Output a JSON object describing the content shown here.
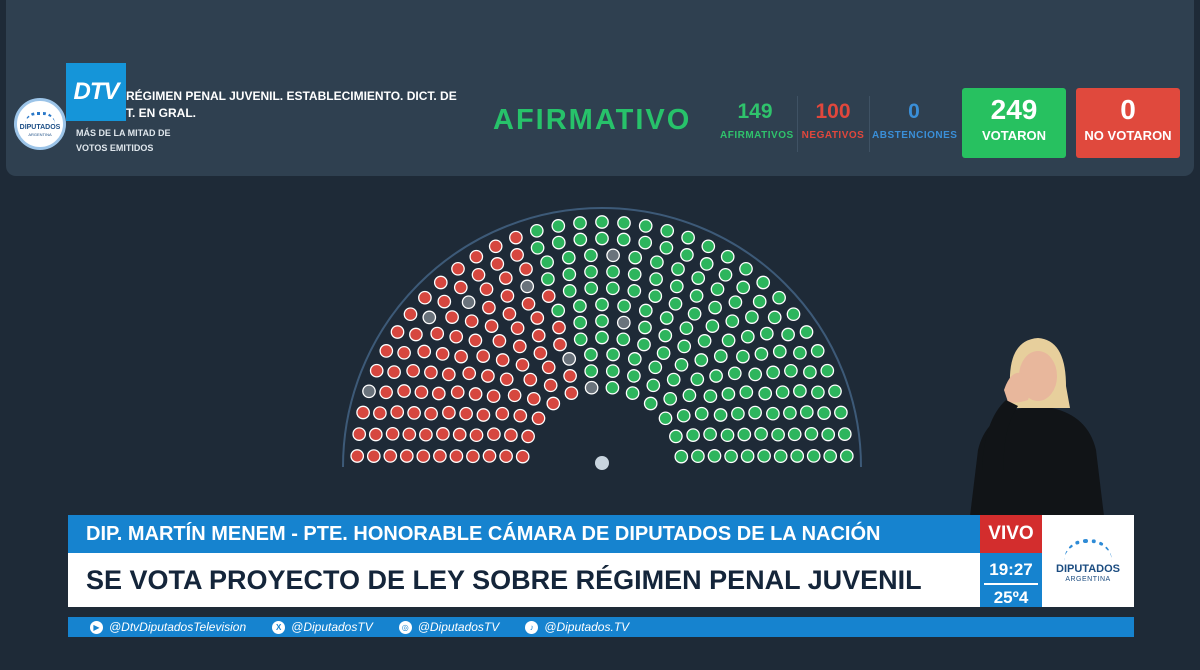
{
  "header": {
    "vote_title_line1": "RÉGIMEN PENAL JUVENIL. ESTABLECIMIENTO. DICT. DE",
    "vote_title_line2": "T. EN GRAL.",
    "vote_rule": "MÁS DE LA MITAD DE VOTOS EMITIDOS",
    "seal_text": "DIPUTADOS",
    "seal_sub": "ARGENTINA",
    "dtv_logo": "DTV"
  },
  "result": {
    "word": "AFIRMATIVO",
    "affirmative": {
      "value": "149",
      "label": "AFIRMATIVOS"
    },
    "negative": {
      "value": "100",
      "label": "NEGATIVOS"
    },
    "abstention": {
      "value": "0",
      "label": "ABSTENCIONES"
    },
    "voted": {
      "value": "249",
      "label": "VOTARON"
    },
    "not_voted": {
      "value": "0",
      "label": "NO VOTARON"
    }
  },
  "chamber": {
    "total_seats": 257,
    "negative_seats": 100,
    "absent_seats": 8,
    "affirmative_seats": 149,
    "colors": {
      "affirmative": "#2db55d",
      "negative": "#d6473f",
      "absent": "#6a737c",
      "president": "#c8d4de"
    }
  },
  "lower_third": {
    "speaker": "DIP. MARTÍN MENEM - PTE. HONORABLE CÁMARA DE DIPUTADOS DE LA NACIÓN",
    "headline": "SE VOTA PROYECTO DE LEY SOBRE RÉGIMEN PENAL JUVENIL",
    "live": "VIVO",
    "time": "19:27",
    "temperature": "25º4",
    "logo_line1": "DIPUTADOS",
    "logo_line2": "ARGENTINA"
  },
  "social": [
    {
      "icon": "youtube-icon",
      "glyph": "▶",
      "handle": "@DtvDiputadosTelevision"
    },
    {
      "icon": "x-icon",
      "glyph": "X",
      "handle": "@DiputadosTV"
    },
    {
      "icon": "instagram-icon",
      "glyph": "◎",
      "handle": "@DiputadosTV"
    },
    {
      "icon": "tiktok-icon",
      "glyph": "♪",
      "handle": "@Diputados.TV"
    }
  ]
}
